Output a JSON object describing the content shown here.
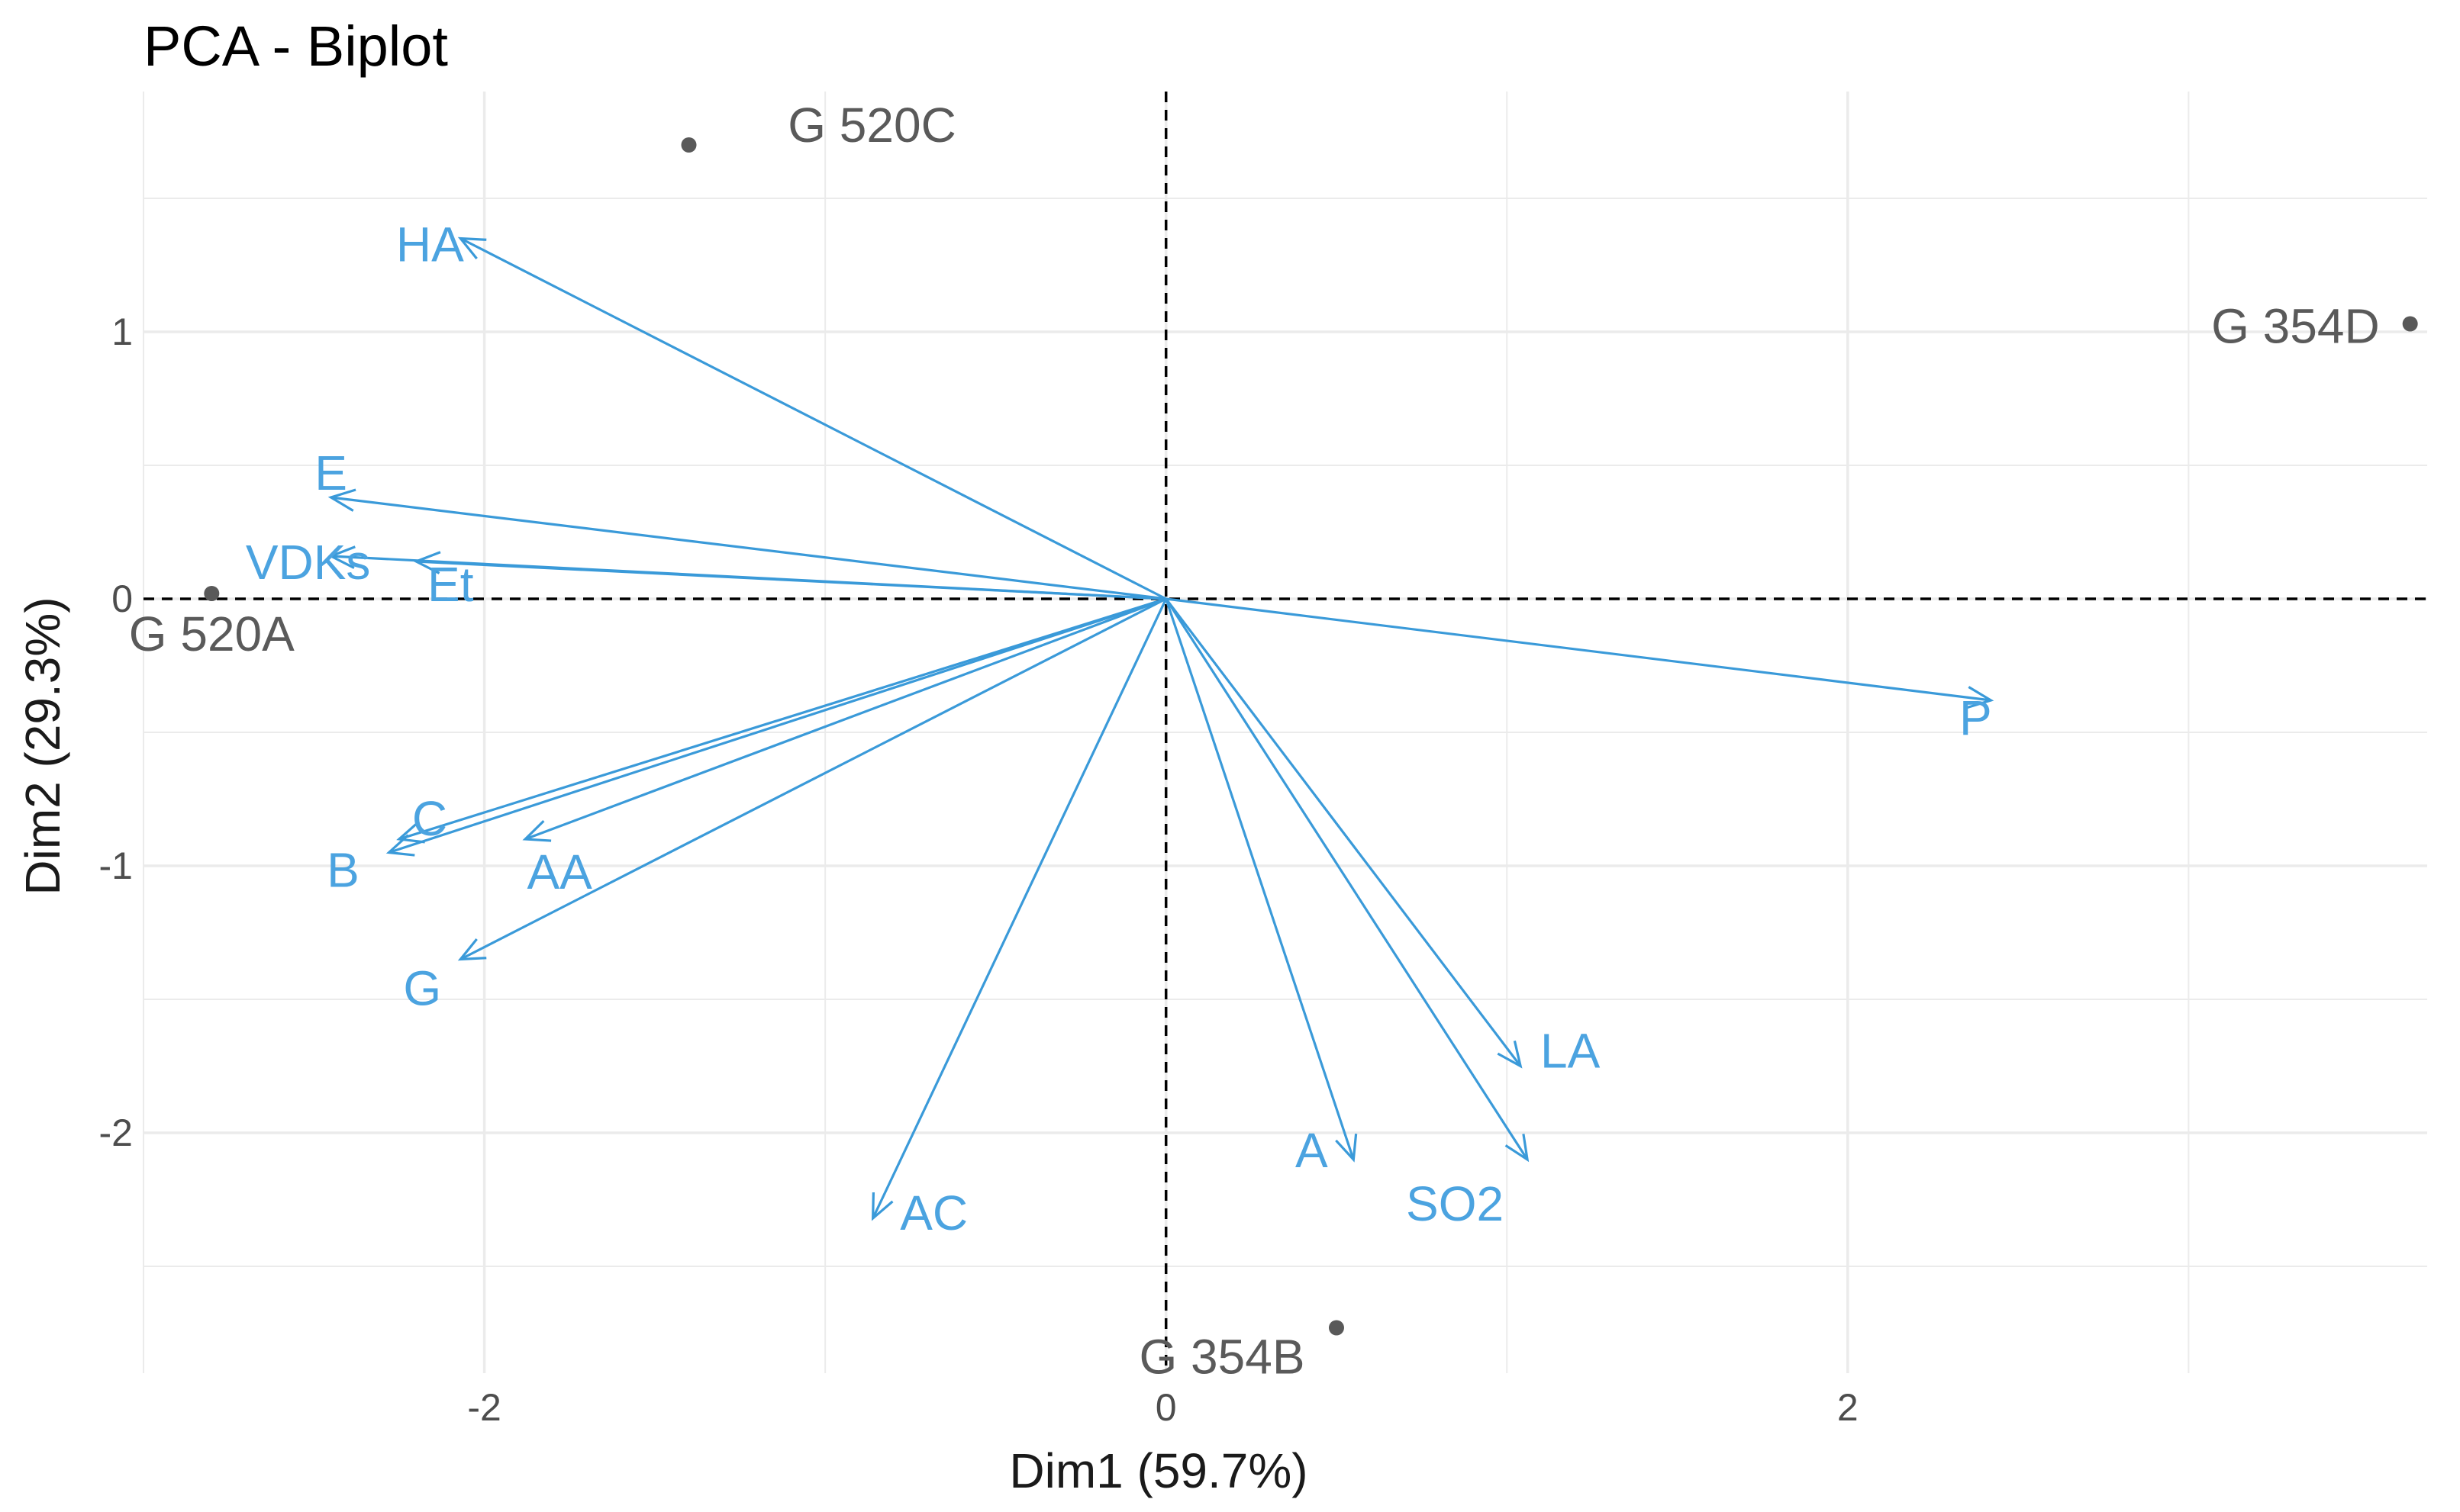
{
  "chart_data": {
    "type": "scatter",
    "title": "PCA - Biplot",
    "xlabel": "Dim1 (59.7%)",
    "ylabel": "Dim2 (29.3%)",
    "xlim": [
      -3.0,
      3.7
    ],
    "ylim": [
      -2.9,
      1.9
    ],
    "x_ticks": [
      -2,
      0,
      2
    ],
    "x_tick_labels": [
      "-2",
      "0",
      "2"
    ],
    "y_ticks": [
      -2,
      -1,
      0,
      1
    ],
    "y_tick_labels": [
      "-2",
      "-1",
      "0",
      "1"
    ],
    "grid": true,
    "reference_lines": {
      "x": 0,
      "y": 0,
      "style": "dashed"
    },
    "colors": {
      "individuals": "#595959",
      "variables": "#3a9ad9",
      "grid": "#ebebeb"
    },
    "individuals": [
      {
        "name": "G 520C",
        "x": -1.4,
        "y": 1.7
      },
      {
        "name": "G 354D",
        "x": 3.65,
        "y": 1.03
      },
      {
        "name": "G 520A",
        "x": -2.8,
        "y": 0.02
      },
      {
        "name": "G 354B",
        "x": 0.5,
        "y": -2.73
      }
    ],
    "variables": [
      {
        "name": "HA",
        "x": -2.07,
        "y": 1.35
      },
      {
        "name": "E",
        "x": -2.45,
        "y": 0.38
      },
      {
        "name": "VDKs",
        "x": -2.45,
        "y": 0.16
      },
      {
        "name": "Et",
        "x": -2.2,
        "y": 0.14
      },
      {
        "name": "P",
        "x": 2.42,
        "y": -0.38
      },
      {
        "name": "C",
        "x": -2.25,
        "y": -0.9
      },
      {
        "name": "B",
        "x": -2.28,
        "y": -0.95
      },
      {
        "name": "AA",
        "x": -1.88,
        "y": -0.9
      },
      {
        "name": "G",
        "x": -2.07,
        "y": -1.35
      },
      {
        "name": "LA",
        "x": 1.04,
        "y": -1.75
      },
      {
        "name": "SO2",
        "x": 1.06,
        "y": -2.1
      },
      {
        "name": "A",
        "x": 0.55,
        "y": -2.1
      },
      {
        "name": "AC",
        "x": -0.86,
        "y": -2.32
      }
    ]
  }
}
